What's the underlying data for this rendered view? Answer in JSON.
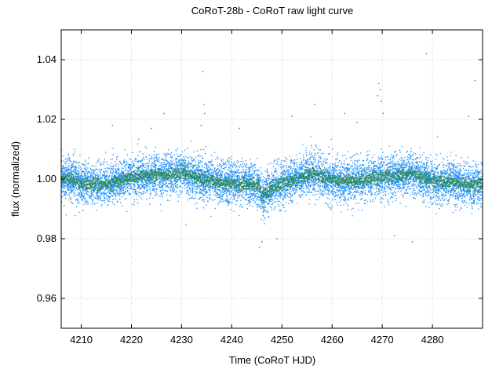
{
  "chart_data": {
    "type": "scatter",
    "title": "CoRoT-28b - CoRoT raw light curve",
    "xlabel": "Time (CoRoT HJD)",
    "ylabel": "flux (normalized)",
    "xlim": [
      4206,
      4290
    ],
    "ylim": [
      0.95,
      1.05
    ],
    "x_ticks": [
      4210,
      4220,
      4230,
      4240,
      4250,
      4260,
      4270,
      4280
    ],
    "y_ticks": [
      0.96,
      0.98,
      1.0,
      1.02,
      1.04
    ],
    "x_tick_labels": [
      "4210",
      "4220",
      "4230",
      "4240",
      "4250",
      "4260",
      "4270",
      "4280"
    ],
    "y_tick_labels": [
      "0.96",
      "0.98",
      "1.00",
      "1.02",
      "1.04"
    ],
    "grid": true,
    "legend": false,
    "series": [
      {
        "color": "#1e90ff",
        "style": "points",
        "trend": [
          [
            4206,
            1.0003
          ],
          [
            4208,
            1.0
          ],
          [
            4210,
            0.9985
          ],
          [
            4212,
            0.9983
          ],
          [
            4214,
            0.998
          ],
          [
            4216,
            0.9985
          ],
          [
            4218,
            0.9998
          ],
          [
            4220,
            1.0003
          ],
          [
            4222,
            1.001
          ],
          [
            4224,
            1.0015
          ],
          [
            4226,
            1.0012
          ],
          [
            4228,
            1.0015
          ],
          [
            4230,
            1.002
          ],
          [
            4232,
            1.001
          ],
          [
            4234,
            1.0
          ],
          [
            4236,
            0.9993
          ],
          [
            4238,
            0.9988
          ],
          [
            4240,
            0.9985
          ],
          [
            4242,
            0.9983
          ],
          [
            4244,
            0.9985
          ],
          [
            4245.5,
            0.9975
          ],
          [
            4246,
            0.994
          ],
          [
            4247,
            0.9955
          ],
          [
            4248,
            0.997
          ],
          [
            4250,
            0.9985
          ],
          [
            4252,
            0.9995
          ],
          [
            4254,
            1.0005
          ],
          [
            4256,
            1.002
          ],
          [
            4258,
            1.0008
          ],
          [
            4260,
            1.0
          ],
          [
            4262,
            0.9995
          ],
          [
            4264,
            0.9993
          ],
          [
            4266,
            0.9998
          ],
          [
            4268,
            1.0005
          ],
          [
            4270,
            1.001
          ],
          [
            4272,
            1.0008
          ],
          [
            4274,
            1.0012
          ],
          [
            4276,
            1.002
          ],
          [
            4278,
            1.0005
          ],
          [
            4280,
            0.9995
          ],
          [
            4282,
            0.9988
          ],
          [
            4284,
            0.999
          ],
          [
            4286,
            0.9983
          ],
          [
            4288,
            0.998
          ],
          [
            4290,
            0.998
          ]
        ],
        "scatter_sigma": 0.0035,
        "outliers": [
          [
            4234.2,
            1.036
          ],
          [
            4234.4,
            1.025
          ],
          [
            4234.6,
            1.022
          ],
          [
            4233.9,
            1.018
          ],
          [
            4224.0,
            1.017
          ],
          [
            4226.5,
            1.022
          ],
          [
            4256.5,
            1.025
          ],
          [
            4262.5,
            1.022
          ],
          [
            4269.3,
            1.032
          ],
          [
            4269.6,
            1.03
          ],
          [
            4269.1,
            1.028
          ],
          [
            4269.8,
            1.026
          ],
          [
            4270.2,
            1.022
          ],
          [
            4278.8,
            1.042
          ],
          [
            4288.5,
            1.033
          ],
          [
            4287.2,
            1.021
          ],
          [
            4265.0,
            1.019
          ],
          [
            4252.0,
            1.021
          ],
          [
            4245.5,
            0.977
          ],
          [
            4246.0,
            0.979
          ],
          [
            4241.5,
            1.017
          ],
          [
            4216.2,
            1.018
          ],
          [
            4276.0,
            0.979
          ],
          [
            4249.0,
            0.98
          ],
          [
            4272.4,
            0.981
          ]
        ]
      },
      {
        "color": "#2e8b57",
        "style": "binned-points",
        "trend_of_series": 0
      }
    ]
  }
}
